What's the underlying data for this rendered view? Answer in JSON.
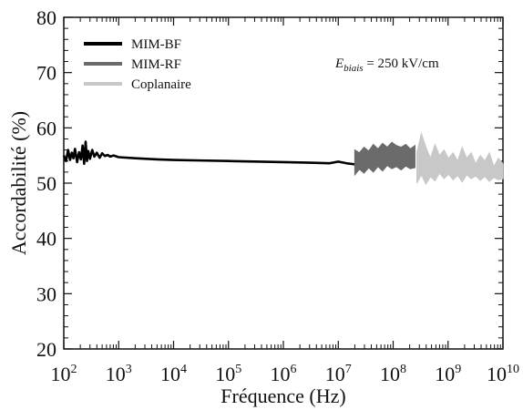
{
  "chart_data": {
    "type": "line",
    "xscale": "log",
    "xlim": [
      100,
      10000000000
    ],
    "ylim": [
      20,
      80
    ],
    "xlabel": "Fréquence (Hz)",
    "ylabel": "Accordabilité (%)",
    "x_ticks": [
      {
        "value": 100,
        "base": "10",
        "exp": "2"
      },
      {
        "value": 1000,
        "base": "10",
        "exp": "3"
      },
      {
        "value": 10000,
        "base": "10",
        "exp": "4"
      },
      {
        "value": 100000,
        "base": "10",
        "exp": "5"
      },
      {
        "value": 1000000,
        "base": "10",
        "exp": "6"
      },
      {
        "value": 10000000,
        "base": "10",
        "exp": "7"
      },
      {
        "value": 100000000,
        "base": "10",
        "exp": "8"
      },
      {
        "value": 1000000000,
        "base": "10",
        "exp": "9"
      },
      {
        "value": 10000000000,
        "base": "10",
        "exp": "10"
      }
    ],
    "y_ticks": [
      {
        "value": 20,
        "label": "20"
      },
      {
        "value": 30,
        "label": "30"
      },
      {
        "value": 40,
        "label": "40"
      },
      {
        "value": 50,
        "label": "50"
      },
      {
        "value": 60,
        "label": "60"
      },
      {
        "value": 70,
        "label": "70"
      },
      {
        "value": 80,
        "label": "80"
      }
    ],
    "legend": {
      "placement": "top-left"
    },
    "annotation": {
      "symbol": "E",
      "subscript": "biais",
      "text": " = 250 kV/cm",
      "placement": "top-right"
    },
    "series": [
      {
        "name": "MIM-BF",
        "color": "#000000",
        "points": [
          [
            100,
            55.0
          ],
          [
            110,
            54.0
          ],
          [
            120,
            56.0
          ],
          [
            130,
            54.2
          ],
          [
            140,
            55.5
          ],
          [
            150,
            54.5
          ],
          [
            160,
            56.2
          ],
          [
            175,
            53.8
          ],
          [
            190,
            55.6
          ],
          [
            205,
            54.3
          ],
          [
            220,
            56.8
          ],
          [
            235,
            53.5
          ],
          [
            250,
            57.5
          ],
          [
            265,
            54.0
          ],
          [
            280,
            55.8
          ],
          [
            300,
            54.4
          ],
          [
            330,
            56.0
          ],
          [
            360,
            54.8
          ],
          [
            400,
            55.5
          ],
          [
            450,
            54.6
          ],
          [
            500,
            55.4
          ],
          [
            560,
            54.9
          ],
          [
            630,
            55.1
          ],
          [
            700,
            54.8
          ],
          [
            800,
            55.0
          ],
          [
            1000,
            54.7
          ],
          [
            2000,
            54.5
          ],
          [
            5000,
            54.3
          ],
          [
            10000,
            54.2
          ],
          [
            30000,
            54.1
          ],
          [
            100000,
            54.0
          ],
          [
            300000,
            53.9
          ],
          [
            1000000,
            53.8
          ],
          [
            3000000,
            53.7
          ],
          [
            7000000,
            53.6
          ],
          [
            10000000,
            53.9
          ],
          [
            14000000,
            53.6
          ],
          [
            20000000,
            53.4
          ]
        ]
      },
      {
        "name": "MIM-RF",
        "color": "#6b6b6b",
        "xrange": [
          20000000,
          250000000
        ],
        "upper": [
          56,
          55.5,
          56.5,
          55.8,
          57,
          56.2,
          57.2,
          56.5,
          57.4,
          56.8,
          56.5,
          57,
          56.2,
          56.8
        ],
        "lower": [
          51.5,
          52.5,
          51.8,
          52.8,
          52,
          53,
          52.2,
          53.2,
          52.6,
          53,
          52.4,
          53.1,
          52.6,
          52.8
        ]
      },
      {
        "name": "Coplanaire",
        "color": "#c8c8c8",
        "xrange": [
          270000000,
          10000000000
        ],
        "upper": [
          55.5,
          59,
          56.5,
          54.5,
          57,
          55,
          56,
          54.5,
          55.5,
          54,
          56.5,
          54.5,
          55.5,
          53.5,
          55,
          54,
          55.5,
          53,
          54.5,
          53.5
        ],
        "lower": [
          50,
          51.5,
          49.8,
          51.2,
          50.4,
          51.8,
          50.8,
          51.6,
          50.6,
          51.4,
          50.2,
          51.5,
          50.8,
          51.3,
          50.5,
          51.2,
          50.3,
          51,
          50.6,
          50.8
        ]
      }
    ]
  }
}
